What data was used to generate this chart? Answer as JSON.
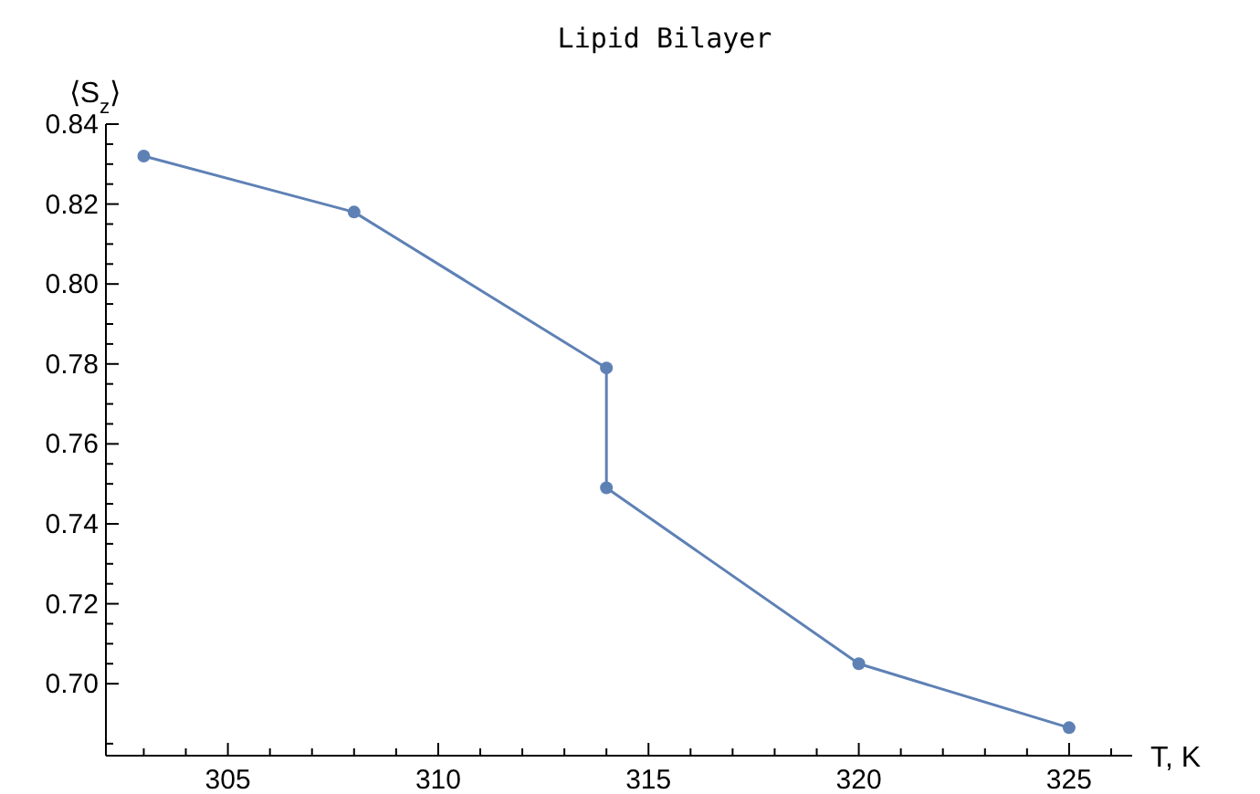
{
  "chart_data": {
    "type": "line",
    "title": "Lipid Bilayer",
    "xlabel": "T, K",
    "ylabel": "⟨S$_{z}$⟩",
    "x": [
      303,
      308,
      314,
      314,
      320,
      325
    ],
    "series": [
      {
        "color": "#5e81b5",
        "values": [
          0.832,
          0.818,
          0.779,
          0.749,
          0.705,
          0.689
        ]
      }
    ],
    "xlim": [
      302.1,
      326.5
    ],
    "xticks": [
      {
        "value": 303,
        "label": null
      },
      {
        "value": 304,
        "label": null
      },
      305,
      {
        "value": 306,
        "label": null
      },
      {
        "value": 307,
        "label": null
      },
      {
        "value": 308,
        "label": null
      },
      {
        "value": 309,
        "label": null
      },
      310,
      {
        "value": 311,
        "label": null
      },
      {
        "value": 312,
        "label": null
      },
      {
        "value": 313,
        "label": null
      },
      {
        "value": 314,
        "label": null
      },
      315,
      {
        "value": 316,
        "label": null
      },
      {
        "value": 317,
        "label": null
      },
      {
        "value": 318,
        "label": null
      },
      {
        "value": 319,
        "label": null
      },
      320,
      {
        "value": 321,
        "label": null
      },
      {
        "value": 322,
        "label": null
      },
      {
        "value": 323,
        "label": null
      },
      {
        "value": 324,
        "label": null
      },
      325,
      {
        "value": 326,
        "label": null
      }
    ],
    "ylim": [
      0.682,
      0.84
    ],
    "yticks": [
      {
        "value": 0.685,
        "label": null
      },
      {
        "value": 0.7,
        "label": "0.70"
      },
      {
        "value": 0.705,
        "label": null
      },
      {
        "value": 0.71,
        "label": null
      },
      {
        "value": 0.715,
        "label": null
      },
      {
        "value": 0.72,
        "label": "0.72"
      },
      {
        "value": 0.725,
        "label": null
      },
      {
        "value": 0.73,
        "label": null
      },
      {
        "value": 0.735,
        "label": null
      },
      {
        "value": 0.74,
        "label": "0.74"
      },
      {
        "value": 0.745,
        "label": null
      },
      {
        "value": 0.75,
        "label": null
      },
      {
        "value": 0.755,
        "label": null
      },
      {
        "value": 0.76,
        "label": "0.76"
      },
      {
        "value": 0.765,
        "label": null
      },
      {
        "value": 0.77,
        "label": null
      },
      {
        "value": 0.775,
        "label": null
      },
      {
        "value": 0.78,
        "label": "0.78"
      },
      {
        "value": 0.785,
        "label": null
      },
      {
        "value": 0.79,
        "label": null
      },
      {
        "value": 0.795,
        "label": null
      },
      {
        "value": 0.8,
        "label": "0.80"
      },
      {
        "value": 0.805,
        "label": null
      },
      {
        "value": 0.81,
        "label": null
      },
      {
        "value": 0.815,
        "label": null
      },
      {
        "value": 0.82,
        "label": "0.82"
      },
      {
        "value": 0.825,
        "label": null
      },
      {
        "value": 0.83,
        "label": null
      },
      {
        "value": 0.835,
        "label": null
      },
      {
        "value": 0.84,
        "label": "0.84"
      }
    ],
    "marker": "circle",
    "line_style": "solid",
    "grid": false
  }
}
